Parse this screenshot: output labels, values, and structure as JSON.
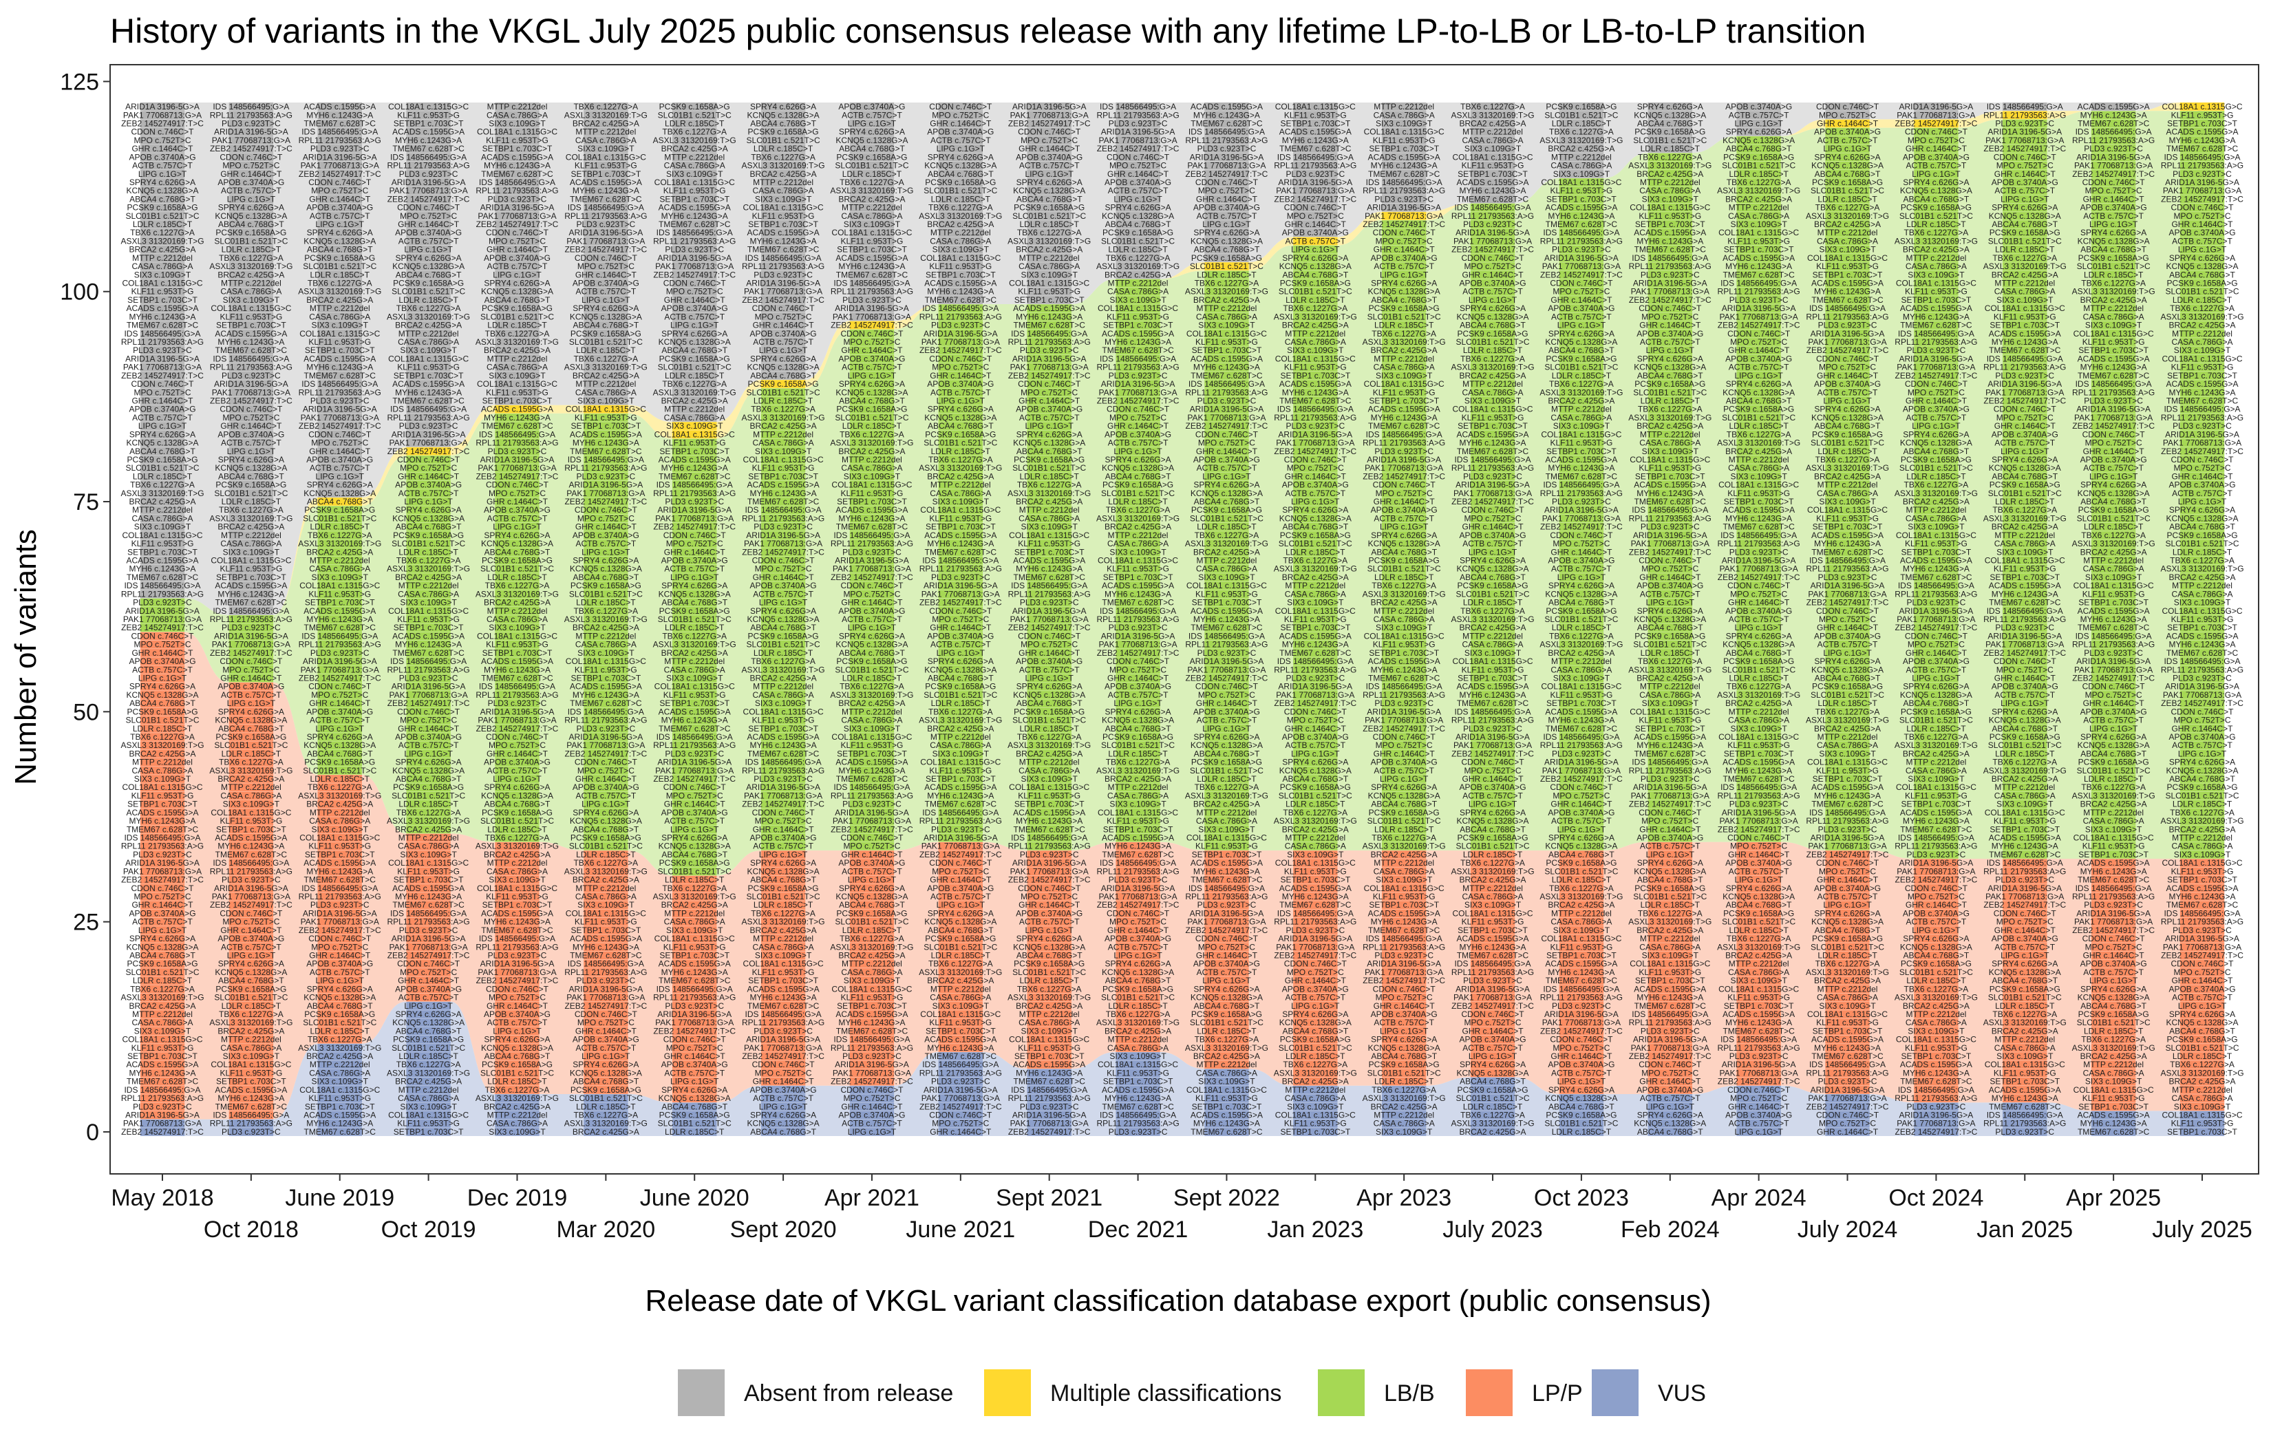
{
  "chart_data": {
    "type": "area",
    "title": "History of variants in the VKGL July 2025 public consensus release with any lifetime LP-to-LB or LB-to-LP transition",
    "xlabel": "Release date of VKGL variant classification database export (public consensus)",
    "ylabel": "Number of variants",
    "ylim": [
      -5,
      127
    ],
    "yticks": [
      0,
      25,
      50,
      75,
      100,
      125
    ],
    "grid": false,
    "legend_position": "bottom",
    "categories": [
      "May 2018",
      "Oct 2018",
      "June 2019",
      "Oct 2019",
      "Dec 2019",
      "Mar 2020",
      "June 2020",
      "Sept 2020",
      "Apr 2021",
      "June 2021",
      "Sept 2021",
      "Dec 2021",
      "Sept 2022",
      "Jan 2023",
      "Apr 2023",
      "July 2023",
      "Oct 2023",
      "Feb 2024",
      "Apr 2024",
      "July 2024",
      "Oct 2024",
      "Jan 2025",
      "Apr 2025",
      "July 2025"
    ],
    "series": [
      {
        "name": "VUS",
        "color": "#8DA0CB",
        "values": [
          2,
          2,
          11,
          16,
          5,
          5,
          4,
          6,
          6,
          10,
          8,
          10,
          8,
          6,
          6,
          7,
          5,
          5,
          6,
          5,
          4,
          4,
          3,
          3
        ]
      },
      {
        "name": "LP/P",
        "color": "#FC8D62",
        "values": [
          58,
          52,
          32,
          20,
          30,
          29,
          27,
          28,
          28,
          25,
          26,
          25,
          26,
          28,
          28,
          27,
          29,
          30,
          29,
          29,
          29,
          29,
          30,
          30
        ]
      },
      {
        "name": "LB/B",
        "color": "#A6D854",
        "values": [
          4,
          8,
          32,
          45,
          51,
          52,
          52,
          55,
          62,
          64,
          65,
          67,
          69,
          72,
          75,
          77,
          80,
          82,
          84,
          86,
          87,
          88,
          89,
          89
        ]
      },
      {
        "name": "Multiple classifications",
        "color": "#FFD92F",
        "values": [
          0,
          0,
          1,
          1,
          1,
          1,
          2,
          1,
          1,
          0,
          0,
          0,
          1,
          1,
          1,
          0,
          0,
          0,
          0,
          1,
          1,
          1,
          0,
          1
        ]
      },
      {
        "name": "Absent from release",
        "color": "#B3B3B3",
        "values": [
          59,
          61,
          47,
          41,
          36,
          36,
          38,
          33,
          26,
          24,
          24,
          21,
          19,
          16,
          13,
          12,
          9,
          6,
          4,
          2,
          2,
          1,
          1,
          0
        ]
      }
    ],
    "legend": [
      {
        "label": "Absent from release",
        "color": "#B3B3B3"
      },
      {
        "label": "Multiple classifications",
        "color": "#FFD92F"
      },
      {
        "label": "LB/B",
        "color": "#A6D854"
      },
      {
        "label": "LP/P",
        "color": "#FC8D62"
      },
      {
        "label": "VUS",
        "color": "#8DA0CB"
      }
    ],
    "sample_variant_labels": [
      "ZEB2 145274917:T>C",
      "PAK1 77068713:G>A",
      "ARID1A 3196-5G>A",
      "PLD3 c.923T>C",
      "RPL11 21793563:A>G",
      "IDS 148566495:G>A",
      "TMEM67 c.628T>C",
      "MYH6 c.1243G>A",
      "ACADS c.1595G>A",
      "SETBP1 c.703C>T",
      "KLF11 c.953T>G",
      "COL18A1 c.1315G>C",
      "SIX3 c.109G>T",
      "CASA c.786G>A",
      "MTTP c.2212del",
      "BRCA2 c.425G>A",
      "ASXL3 31320169:T>G",
      "TBX6 c.1227G>A",
      "LDLR c.185C>T",
      "SLC01B1 c.521T>C",
      "PCSK9 c.1658A>G",
      "ABCA4 c.768G>T",
      "KCNQ5 c.1328G>A",
      "SPRY4 c.626G>A",
      "LIPG c.1G>T",
      "ACTB c.757C>T",
      "APOB c.3740A>G",
      "GHR c.1464C>T",
      "MPO c.752T>C",
      "CDON c.746C>T"
    ]
  }
}
